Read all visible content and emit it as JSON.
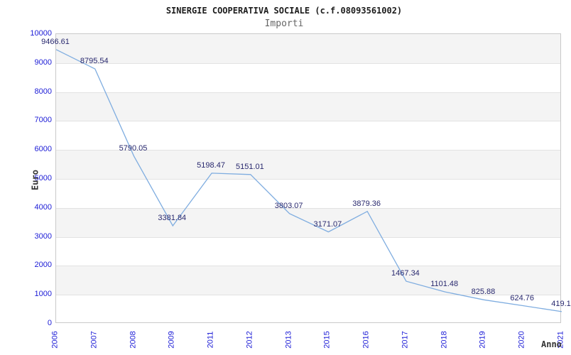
{
  "chart_data": {
    "type": "line",
    "title": "SINERGIE COOPERATIVA SOCIALE (c.f.08093561002)",
    "subtitle": "Importi",
    "xlabel": "Anno",
    "ylabel": "Euro",
    "categories": [
      "2006",
      "2007",
      "2008",
      "2009",
      "2011",
      "2012",
      "2013",
      "2015",
      "2016",
      "2017",
      "2018",
      "2019",
      "2020",
      "2021"
    ],
    "values": [
      9466.61,
      8795.54,
      5790.05,
      3381.84,
      5198.47,
      5151.01,
      3803.07,
      3171.07,
      3879.36,
      1467.34,
      1101.48,
      825.88,
      624.76,
      419.1
    ],
    "point_labels": [
      "9466.61",
      "8795.54",
      "5790.05",
      "3381.84",
      "5198.47",
      "5151.01",
      "3803.07",
      "3171.07",
      "3879.36",
      "1467.34",
      "1101.48",
      "825.88",
      "624.76",
      "419.1"
    ],
    "ylim": [
      0,
      10000
    ],
    "ytick_step": 1000,
    "ytick_labels": [
      "0",
      "1000",
      "2000",
      "3000",
      "4000",
      "5000",
      "6000",
      "7000",
      "8000",
      "9000",
      "10000"
    ],
    "grid": true,
    "banded_background": true,
    "legend_position": "none",
    "markers": "none",
    "colors": {
      "line": "#7fade0",
      "band": "#f4f4f4",
      "grid": "#e2e2e2",
      "border": "#c9c9c9",
      "tick": "#1b1bd6",
      "pointlabel": "#28286e",
      "title": "#1c1c1c",
      "subtitle": "#666666",
      "axistitle": "#333333"
    }
  }
}
